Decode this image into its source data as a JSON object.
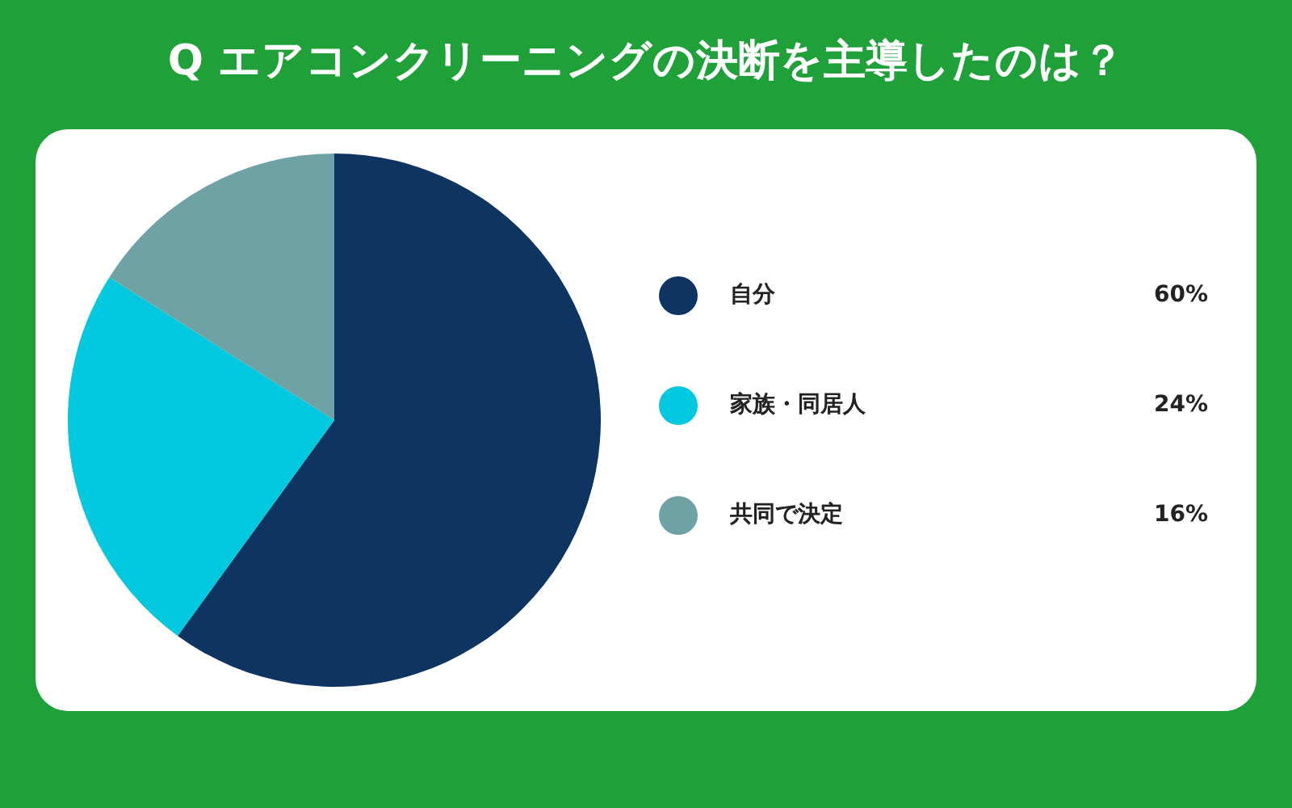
{
  "chart_data": {
    "type": "pie",
    "title": "Q エアコンクリーニングの決断を主導したのは？",
    "categories": [
      "自分",
      "家族・同居人",
      "共同で決定"
    ],
    "values": [
      60,
      24,
      16
    ],
    "colors": [
      "#0e3461",
      "#00c8de",
      "#6fa2a5"
    ],
    "value_labels": [
      "60%",
      "24%",
      "16%"
    ],
    "legend": "right"
  }
}
